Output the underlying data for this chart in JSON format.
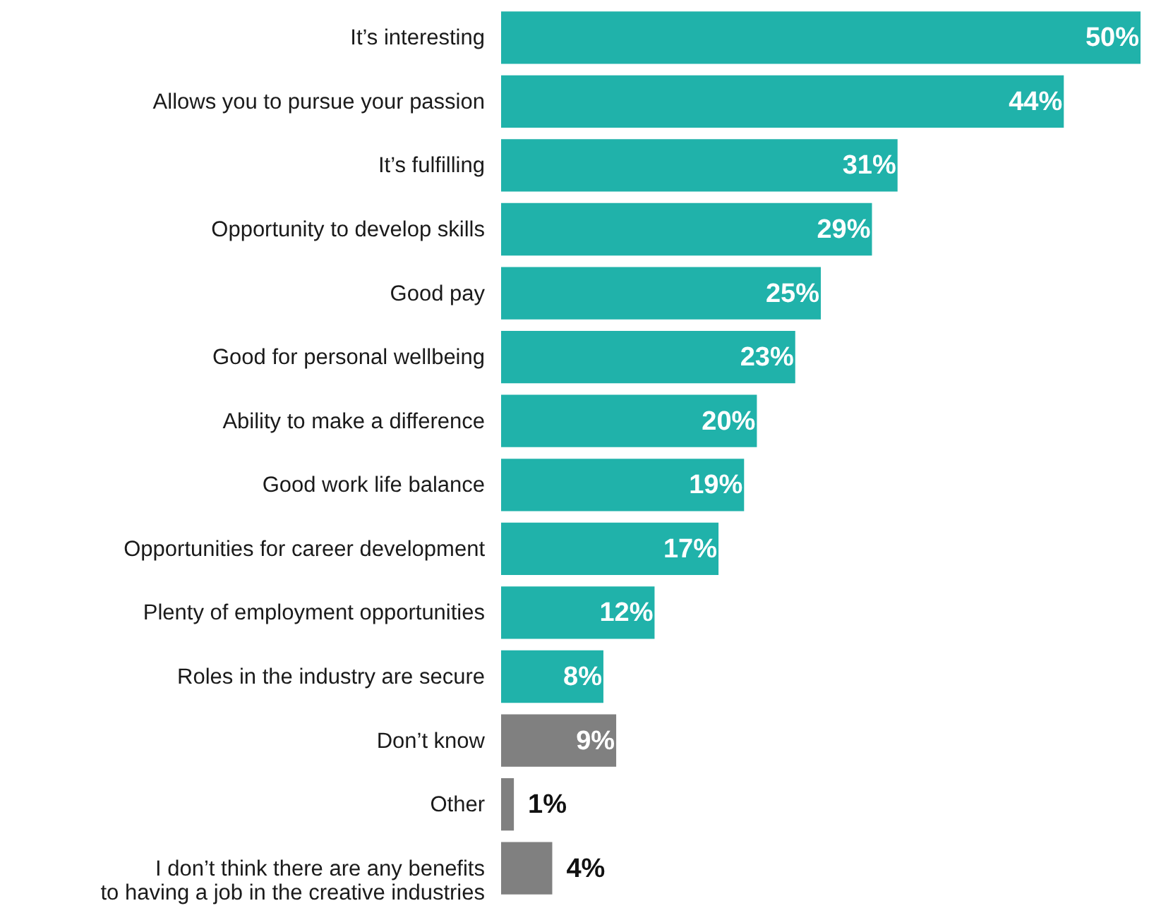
{
  "chart_data": {
    "type": "bar",
    "orientation": "horizontal",
    "categories": [
      "It’s interesting",
      "Allows you to pursue your passion",
      "It’s fulfilling",
      "Opportunity to develop skills",
      "Good pay",
      "Good for personal wellbeing",
      "Ability to make a difference",
      "Good work life balance",
      "Opportunities for career development",
      "Plenty of employment opportunities",
      "Roles in the industry are secure",
      "Don’t know",
      "Other",
      "I don’t think there are any benefits\nto having a job in the creative industries"
    ],
    "values": [
      50,
      44,
      31,
      29,
      25,
      23,
      20,
      19,
      17,
      12,
      8,
      9,
      1,
      4
    ],
    "colors": [
      "#20b2aa",
      "#20b2aa",
      "#20b2aa",
      "#20b2aa",
      "#20b2aa",
      "#20b2aa",
      "#20b2aa",
      "#20b2aa",
      "#20b2aa",
      "#20b2aa",
      "#20b2aa",
      "#808080",
      "#808080",
      "#808080"
    ],
    "value_labels": [
      "50%",
      "44%",
      "31%",
      "29%",
      "25%",
      "23%",
      "20%",
      "19%",
      "17%",
      "12%",
      "8%",
      "9%",
      "1%",
      "4%"
    ]
  }
}
